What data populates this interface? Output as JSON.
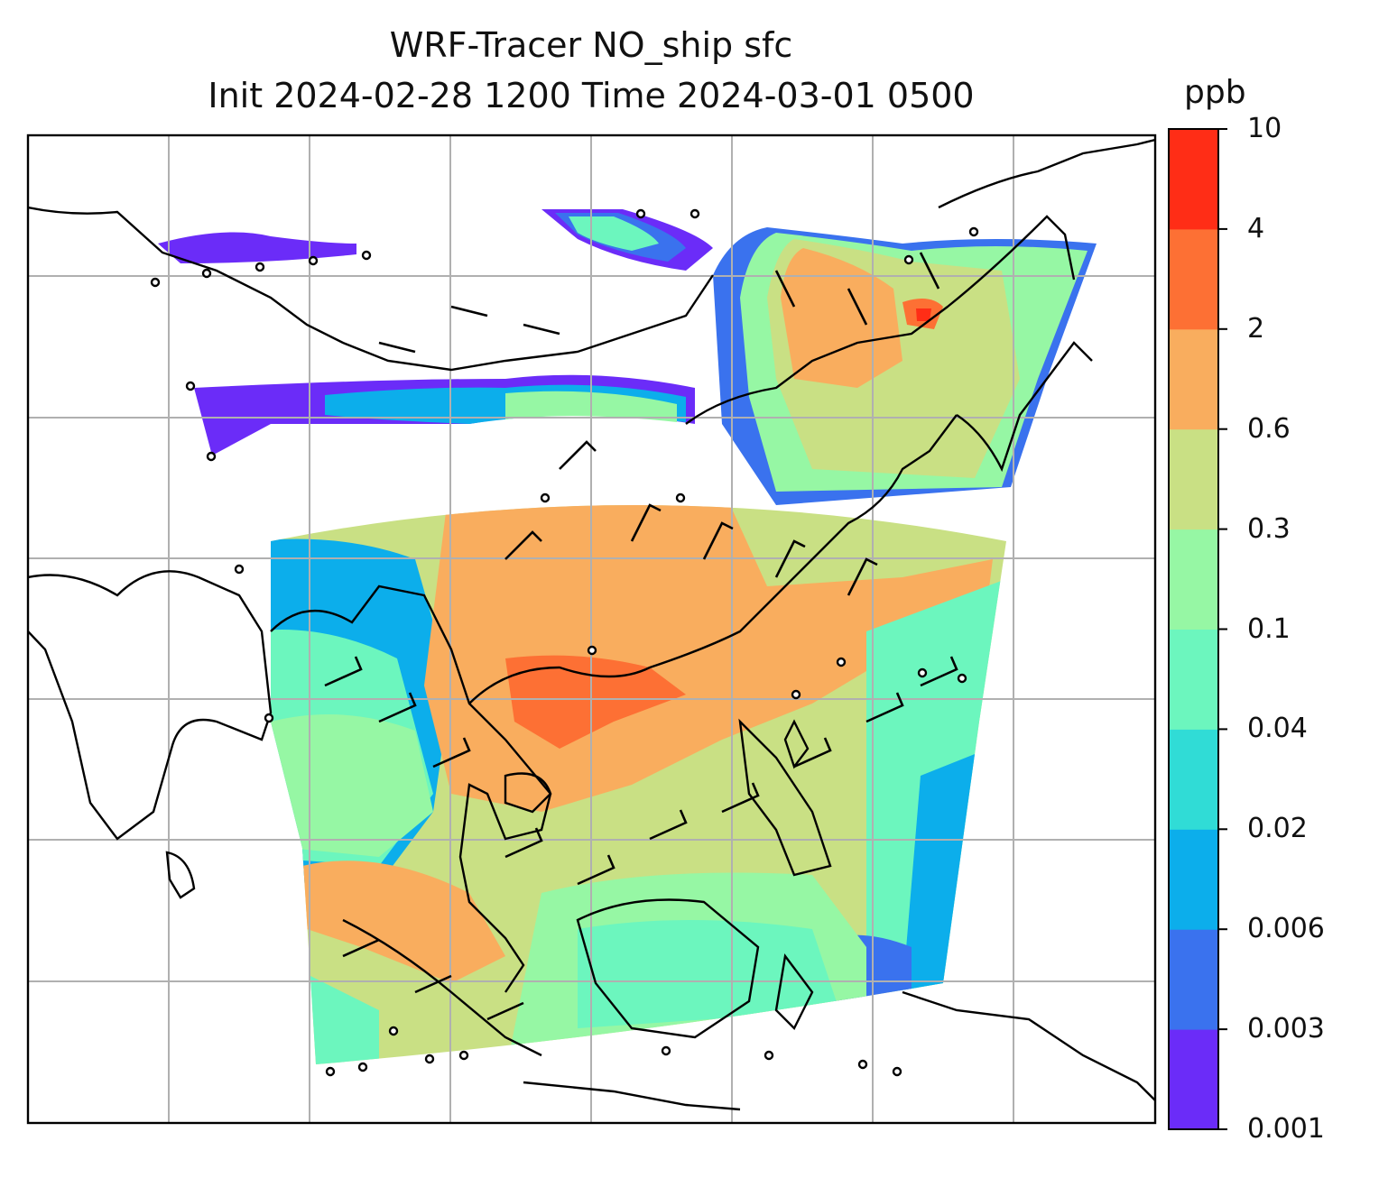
{
  "title": {
    "line1": "WRF-Tracer NO_ship sfc",
    "line2": "Init 2024-02-28 1200 Time 2024-03-01 0500"
  },
  "colorbar": {
    "unit": "ppb",
    "levels": [
      "0.001",
      "0.003",
      "0.006",
      "0.02",
      "0.04",
      "0.1",
      "0.3",
      "0.6",
      "2",
      "4",
      "10"
    ],
    "colors": [
      "#6b2cf8",
      "#3a72ee",
      "#0caeeb",
      "#30dcd6",
      "#6cf6be",
      "#96f7a4",
      "#c9e084",
      "#f9ad5e",
      "#fd7034",
      "#ff2d16"
    ]
  },
  "map": {
    "region": "Southeast Asia / East Asia",
    "overlays": [
      "coastlines",
      "lat-lon gridlines",
      "wind barbs",
      "calm-wind circles"
    ]
  },
  "colors": {
    "frame": "#000000",
    "grid": "#b0b0b0",
    "coast": "#000000",
    "barb": "#000000"
  }
}
